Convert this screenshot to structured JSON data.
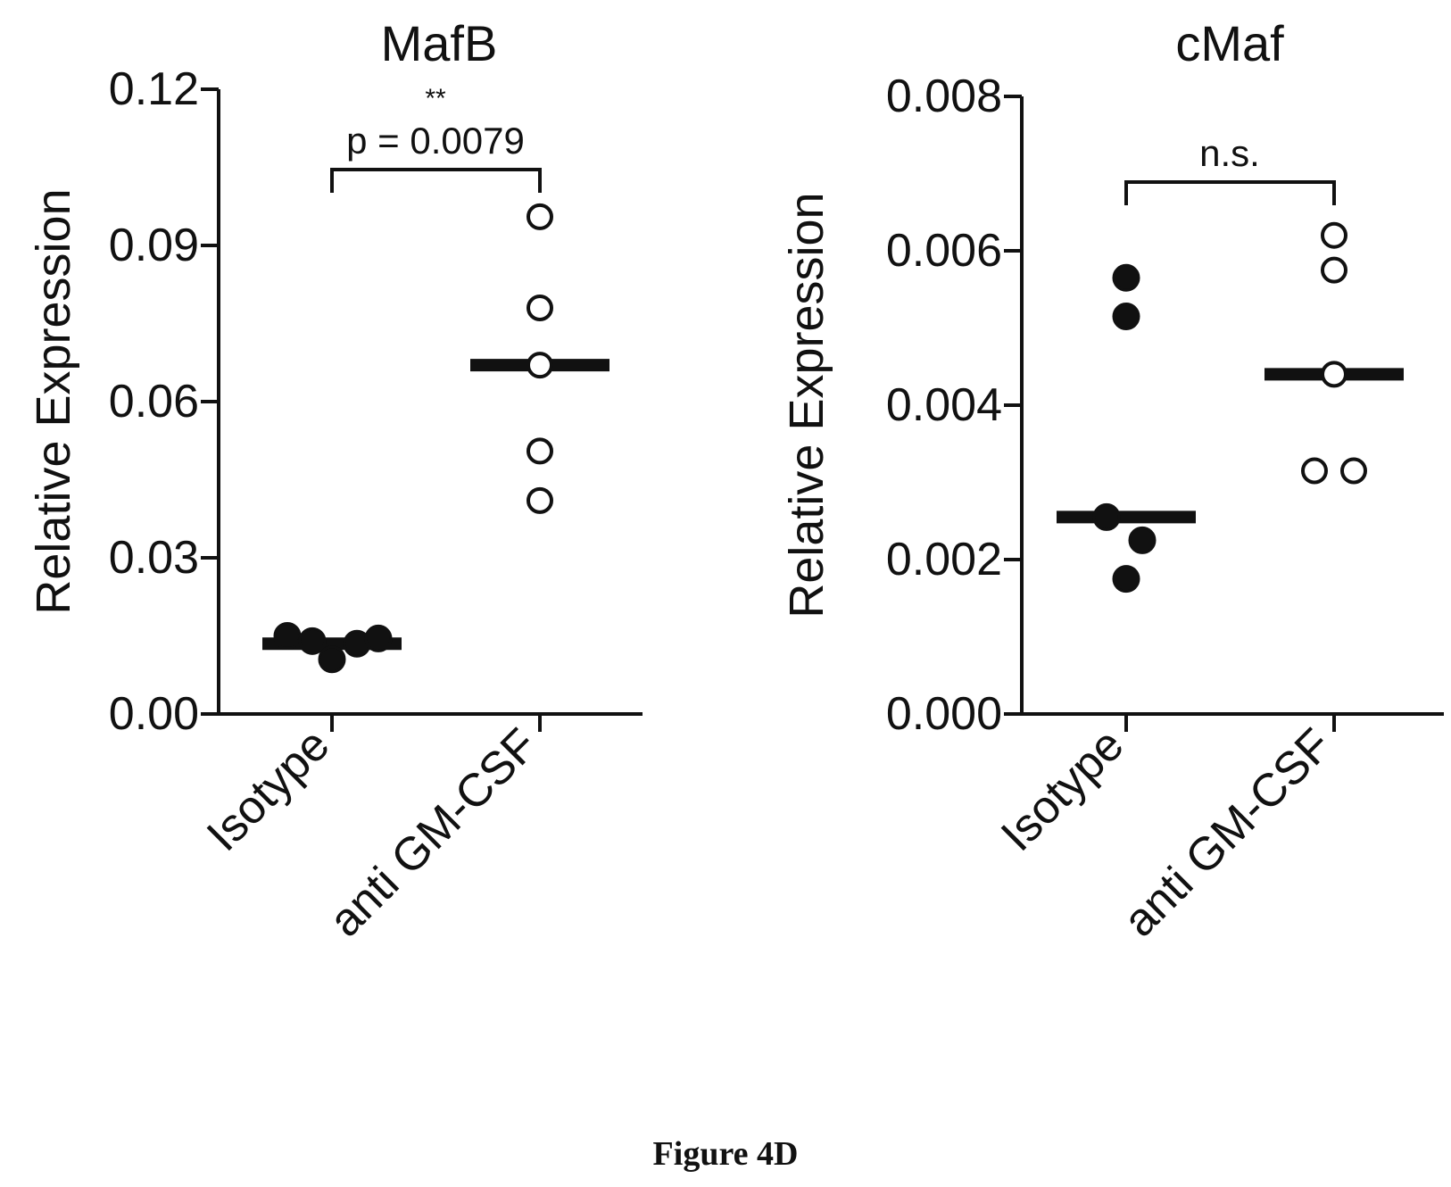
{
  "figure": {
    "caption": "Figure 4D"
  },
  "chart_data": [
    {
      "type": "scatter",
      "title": "MafB",
      "ylabel": "Relative Expression",
      "xlabel": "",
      "categories": [
        "Isotype",
        "anti GM-CSF"
      ],
      "ylim": [
        0,
        0.12
      ],
      "yticks": [
        "0.00",
        "0.03",
        "0.06",
        "0.09",
        "0.12"
      ],
      "grid": false,
      "series": [
        {
          "name": "Isotype",
          "marker": "filled",
          "values": [
            0.015,
            0.014,
            0.0105,
            0.0135,
            0.0145
          ]
        },
        {
          "name": "anti GM-CSF",
          "marker": "open",
          "values": [
            0.0955,
            0.078,
            0.067,
            0.0505,
            0.041
          ]
        }
      ],
      "medians": [
        0.0135,
        0.067
      ],
      "annotation": {
        "stars": "**",
        "label": "p = 0.0079"
      }
    },
    {
      "type": "scatter",
      "title": "cMaf",
      "ylabel": "Relative Expression",
      "xlabel": "",
      "categories": [
        "Isotype",
        "anti GM-CSF"
      ],
      "ylim": [
        0,
        0.008
      ],
      "yticks": [
        "0.000",
        "0.002",
        "0.004",
        "0.006",
        "0.008"
      ],
      "grid": false,
      "series": [
        {
          "name": "Isotype",
          "marker": "filled",
          "values": [
            0.00565,
            0.00515,
            0.00255,
            0.00225,
            0.00175
          ]
        },
        {
          "name": "anti GM-CSF",
          "marker": "open",
          "values": [
            0.0062,
            0.00575,
            0.0044,
            0.00315,
            0.00315
          ]
        }
      ],
      "medians": [
        0.00255,
        0.0044
      ],
      "annotation": {
        "stars": "",
        "label": "n.s."
      }
    }
  ],
  "colors": {
    "ink": "#111111",
    "open_fill": "#ffffff"
  }
}
